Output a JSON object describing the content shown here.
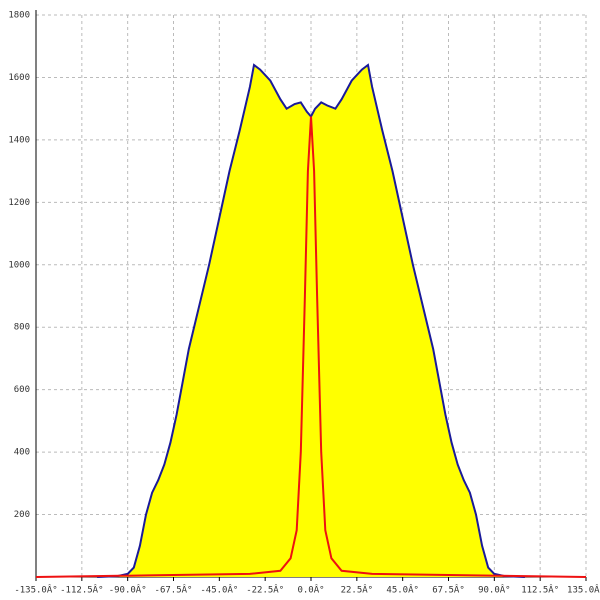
{
  "chart_data": {
    "type": "area",
    "grid": true,
    "xlim": [
      -135,
      135
    ],
    "ylim": [
      0,
      1800
    ],
    "xticks": [
      {
        "value": -135,
        "label": "-135.0Â°"
      },
      {
        "value": -112.5,
        "label": "-112.5Â°"
      },
      {
        "value": -90,
        "label": "-90.0Â°"
      },
      {
        "value": -67.5,
        "label": "-67.5Â°"
      },
      {
        "value": -45,
        "label": "-45.0Â°"
      },
      {
        "value": -22.5,
        "label": "-22.5Â°"
      },
      {
        "value": 0,
        "label": "0.0Â°"
      },
      {
        "value": 22.5,
        "label": "22.5Â°"
      },
      {
        "value": 45,
        "label": "45.0Â°"
      },
      {
        "value": 67.5,
        "label": "67.5Â°"
      },
      {
        "value": 90,
        "label": "90.0Â°"
      },
      {
        "value": 112.5,
        "label": "112.5Â°"
      },
      {
        "value": 135,
        "label": "135.0Â°"
      }
    ],
    "yticks": [
      200,
      400,
      600,
      800,
      1000,
      1200,
      1400,
      1600,
      1800
    ],
    "series": [
      {
        "color": "#1a1a9a",
        "fill": "#ffff00",
        "x": [
          -105,
          -95,
          -90,
          -87,
          -84,
          -81,
          -78,
          -75,
          -72,
          -69,
          -66,
          -60,
          -50,
          -40,
          -35,
          -30,
          -28,
          -25,
          -20,
          -15,
          -12,
          -8,
          -5,
          -2,
          0,
          2,
          5,
          8,
          12,
          15,
          20,
          25,
          28,
          30,
          35,
          40,
          50,
          60,
          66,
          69,
          72,
          75,
          78,
          81,
          84,
          87,
          90,
          95,
          105
        ],
        "values": [
          0,
          3,
          10,
          30,
          100,
          200,
          270,
          310,
          360,
          430,
          520,
          730,
          1000,
          1300,
          1430,
          1570,
          1640,
          1625,
          1590,
          1530,
          1500,
          1515,
          1520,
          1490,
          1475,
          1500,
          1520,
          1510,
          1500,
          1530,
          1590,
          1625,
          1640,
          1570,
          1430,
          1300,
          1000,
          730,
          520,
          430,
          360,
          310,
          270,
          200,
          100,
          30,
          10,
          3,
          0
        ]
      },
      {
        "color": "#ee1111",
        "x": [
          -135,
          -80,
          -30,
          -15,
          -10,
          -7,
          -5,
          -3,
          -1.5,
          0,
          1.5,
          3,
          5,
          7,
          10,
          15,
          30,
          80,
          135
        ],
        "values": [
          0,
          5,
          10,
          20,
          60,
          150,
          400,
          900,
          1300,
          1475,
          1300,
          900,
          400,
          150,
          60,
          20,
          10,
          5,
          0
        ]
      }
    ]
  }
}
